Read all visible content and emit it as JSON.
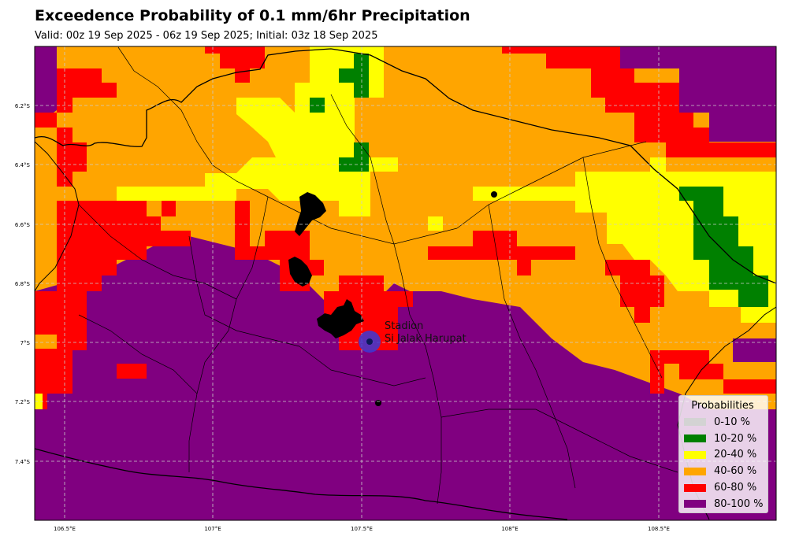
{
  "title": "Exceedence Probability of 0.1 mm/6hr Precipitation",
  "subtitle": "Valid: 00z 19 Sep 2025 - 06z 19 Sep 2025; Initial: 03z 18 Sep 2025",
  "map": {
    "projection": "lat-lon",
    "lon_range": [
      106.38,
      108.89
    ],
    "lat_range": [
      -7.6,
      -6.0
    ],
    "grid": true,
    "x_ticks": [
      "106.5°E",
      "107°E",
      "107.5°E",
      "108°E",
      "108.5°E"
    ],
    "y_ticks": [
      "6.2°S",
      "6.4°S",
      "6.6°S",
      "6.8°S",
      "7°S",
      "7.2°S",
      "7.4°S"
    ],
    "station": {
      "label_line1": "Stadion",
      "label_line2": "Si Jalak Harupat",
      "lon": 107.53,
      "lat": -7.0
    }
  },
  "legend": {
    "title": "Probabilities",
    "placement": "lower-right",
    "items": [
      {
        "label": "0-10 %",
        "color": "#d3d3d3"
      },
      {
        "label": "10-20 %",
        "color": "#008000"
      },
      {
        "label": "20-40 %",
        "color": "#ffff00"
      },
      {
        "label": "40-60 %",
        "color": "#ffa500"
      },
      {
        "label": "60-80 %",
        "color": "#ff0000"
      },
      {
        "label": "80-100 %",
        "color": "#800080"
      }
    ]
  }
}
